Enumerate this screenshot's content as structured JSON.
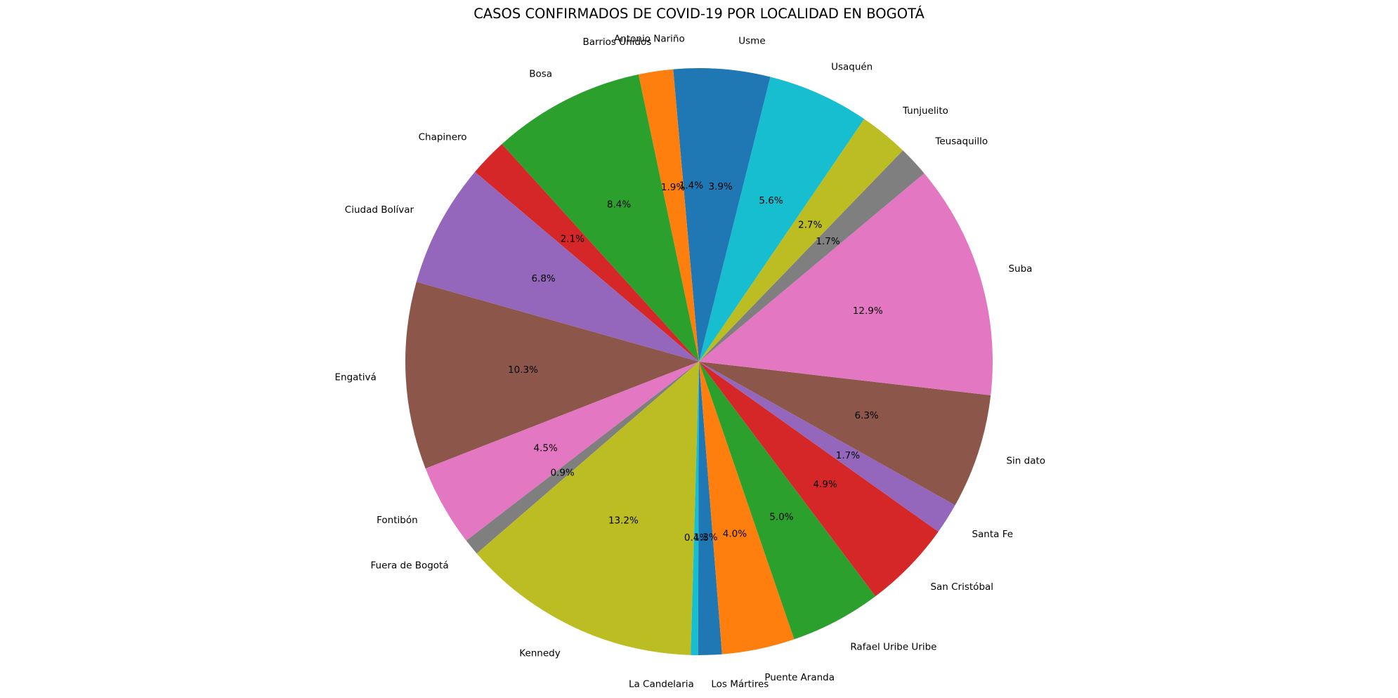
{
  "chart_data": {
    "type": "pie",
    "title": "CASOS CONFIRMADOS DE COVID-19 POR LOCALIDAD EN BOGOTÁ",
    "start_angle_deg": 90,
    "direction": "counterclockwise",
    "slices": [
      {
        "label": "Antonio Nariño",
        "value": 1.4,
        "pct_label": "1.4%",
        "color": "#1f77b4"
      },
      {
        "label": "Barrios Unidos",
        "value": 1.9,
        "pct_label": "1.9%",
        "color": "#ff7f0e"
      },
      {
        "label": "Bosa",
        "value": 8.4,
        "pct_label": "8.4%",
        "color": "#2ca02c"
      },
      {
        "label": "Chapinero",
        "value": 2.1,
        "pct_label": "2.1%",
        "color": "#d62728"
      },
      {
        "label": "Ciudad Bolívar",
        "value": 6.8,
        "pct_label": "6.8%",
        "color": "#9467bd"
      },
      {
        "label": "Engativá",
        "value": 10.3,
        "pct_label": "10.3%",
        "color": "#8c564b"
      },
      {
        "label": "Fontibón",
        "value": 4.5,
        "pct_label": "4.5%",
        "color": "#e377c2"
      },
      {
        "label": "Fuera de Bogotá",
        "value": 0.9,
        "pct_label": "0.9%",
        "color": "#7f7f7f"
      },
      {
        "label": "Kennedy",
        "value": 13.2,
        "pct_label": "13.2%",
        "color": "#bcbd22"
      },
      {
        "label": "La Candelaria",
        "value": 0.4,
        "pct_label": "0.4%",
        "color": "#17becf"
      },
      {
        "label": "Los Mártires",
        "value": 1.3,
        "pct_label": "1.3%",
        "color": "#1f77b4"
      },
      {
        "label": "Puente Aranda",
        "value": 4.0,
        "pct_label": "4.0%",
        "color": "#ff7f0e"
      },
      {
        "label": "Rafael Uribe Uribe",
        "value": 5.0,
        "pct_label": "5.0%",
        "color": "#2ca02c"
      },
      {
        "label": "San Cristóbal",
        "value": 4.9,
        "pct_label": "4.9%",
        "color": "#d62728"
      },
      {
        "label": "Santa Fe",
        "value": 1.7,
        "pct_label": "1.7%",
        "color": "#9467bd"
      },
      {
        "label": "Sin dato",
        "value": 6.3,
        "pct_label": "6.3%",
        "color": "#8c564b"
      },
      {
        "label": "Suba",
        "value": 12.9,
        "pct_label": "12.9%",
        "color": "#e377c2"
      },
      {
        "label": "Teusaquillo",
        "value": 1.7,
        "pct_label": "1.7%",
        "color": "#7f7f7f"
      },
      {
        "label": "Tunjuelito",
        "value": 2.7,
        "pct_label": "2.7%",
        "color": "#bcbd22"
      },
      {
        "label": "Usaquén",
        "value": 5.6,
        "pct_label": "5.6%",
        "color": "#17becf"
      },
      {
        "label": "Usme",
        "value": 3.9,
        "pct_label": "3.9%",
        "color": "#1f77b4"
      }
    ]
  }
}
